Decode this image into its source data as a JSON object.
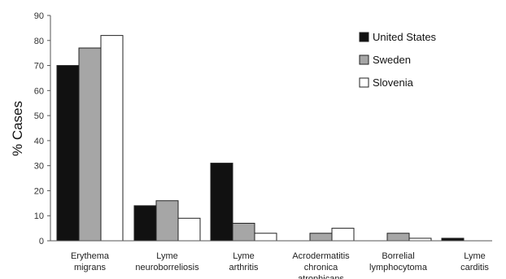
{
  "chart_data": {
    "type": "bar",
    "title": "",
    "xlabel": "",
    "ylabel": "% Cases",
    "ylim": [
      0,
      90
    ],
    "yticks": [
      0,
      10,
      20,
      30,
      40,
      50,
      60,
      70,
      80,
      90
    ],
    "grid": false,
    "legend_position": "top-right",
    "categories": [
      [
        "Erythema",
        "migrans"
      ],
      [
        "Lyme",
        "neuroborreliosis"
      ],
      [
        "Lyme",
        "arthritis"
      ],
      [
        "Acrodermatitis",
        "chronica",
        "atrophicans"
      ],
      [
        "Borrelial",
        "lymphocytoma"
      ],
      [
        "Lyme",
        "carditis"
      ]
    ],
    "series": [
      {
        "name": "United States",
        "color": "#111111",
        "values": [
          70,
          14,
          31,
          0,
          0,
          1
        ]
      },
      {
        "name": "Sweden",
        "color": "#a6a6a6",
        "values": [
          77,
          16,
          7,
          3,
          3,
          0
        ]
      },
      {
        "name": "Slovenia",
        "color": "#ffffff",
        "values": [
          82,
          9,
          3,
          5,
          1,
          0
        ]
      }
    ]
  }
}
